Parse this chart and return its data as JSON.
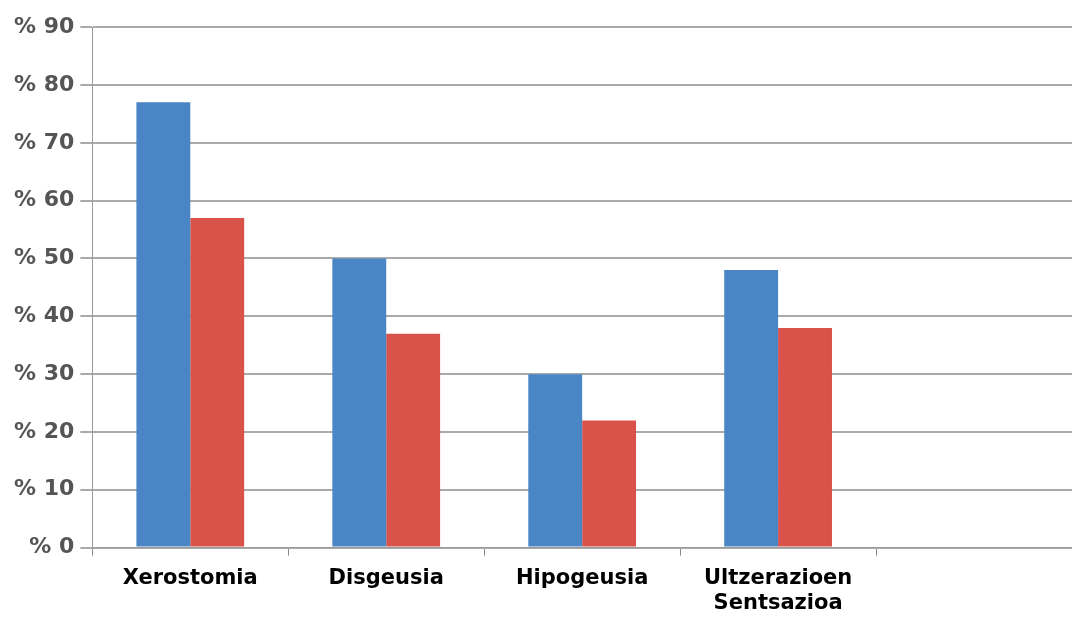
{
  "chart_data": {
    "type": "bar",
    "categories": [
      "Xerostomia",
      "Disgeusia",
      "Hipogeusia",
      "Ultzerazioen\nSentsazioa",
      null
    ],
    "series": [
      {
        "color": "#4a86c5",
        "values": [
          77,
          50,
          30,
          48,
          null
        ]
      },
      {
        "color": "#d9534a",
        "values": [
          57,
          37,
          22,
          38,
          null
        ]
      }
    ],
    "ylim": [
      0,
      90
    ],
    "yticks": [
      {
        "value": 0,
        "label": "% 0"
      },
      {
        "value": 10,
        "label": "% 10"
      },
      {
        "value": 20,
        "label": "% 20"
      },
      {
        "value": 30,
        "label": "% 30"
      },
      {
        "value": 40,
        "label": "% 40"
      },
      {
        "value": 50,
        "label": "% 50"
      },
      {
        "value": 60,
        "label": "% 60"
      },
      {
        "value": 70,
        "label": "% 70"
      },
      {
        "value": 80,
        "label": "% 80"
      },
      {
        "value": 90,
        "label": "% 90"
      }
    ],
    "grid": "y",
    "legend": false
  }
}
